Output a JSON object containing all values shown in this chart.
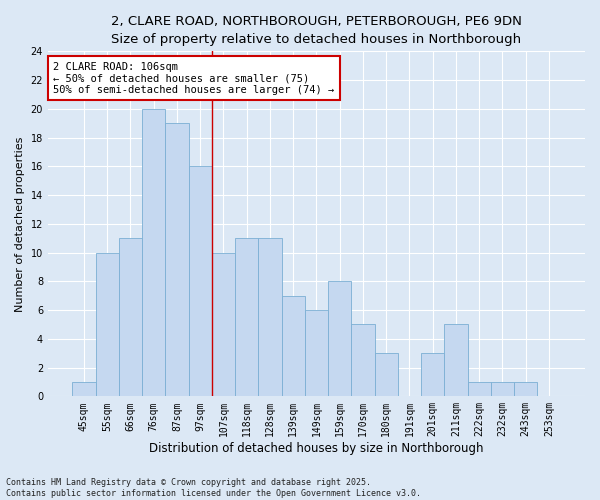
{
  "title_line1": "2, CLARE ROAD, NORTHBOROUGH, PETERBOROUGH, PE6 9DN",
  "title_line2": "Size of property relative to detached houses in Northborough",
  "xlabel": "Distribution of detached houses by size in Northborough",
  "ylabel": "Number of detached properties",
  "categories": [
    "45sqm",
    "55sqm",
    "66sqm",
    "76sqm",
    "87sqm",
    "97sqm",
    "107sqm",
    "118sqm",
    "128sqm",
    "139sqm",
    "149sqm",
    "159sqm",
    "170sqm",
    "180sqm",
    "191sqm",
    "201sqm",
    "211sqm",
    "222sqm",
    "232sqm",
    "243sqm",
    "253sqm"
  ],
  "values": [
    1,
    10,
    11,
    20,
    19,
    16,
    10,
    11,
    11,
    7,
    6,
    8,
    5,
    3,
    0,
    3,
    5,
    1,
    1,
    1,
    0
  ],
  "bar_color": "#c5d8f0",
  "bar_edgecolor": "#7bafd4",
  "vline_idx": 6,
  "vline_color": "#cc0000",
  "annotation_text": "2 CLARE ROAD: 106sqm\n← 50% of detached houses are smaller (75)\n50% of semi-detached houses are larger (74) →",
  "annotation_box_facecolor": "#ffffff",
  "annotation_box_edgecolor": "#cc0000",
  "ylim": [
    0,
    24
  ],
  "yticks": [
    0,
    2,
    4,
    6,
    8,
    10,
    12,
    14,
    16,
    18,
    20,
    22,
    24
  ],
  "footer_line1": "Contains HM Land Registry data © Crown copyright and database right 2025.",
  "footer_line2": "Contains public sector information licensed under the Open Government Licence v3.0.",
  "background_color": "#dce8f5",
  "grid_color": "#ffffff",
  "title_fontsize": 9.5,
  "subtitle_fontsize": 9,
  "axis_label_fontsize": 8.5,
  "tick_fontsize": 7,
  "annotation_fontsize": 7.5,
  "footer_fontsize": 6,
  "ylabel_fontsize": 8
}
